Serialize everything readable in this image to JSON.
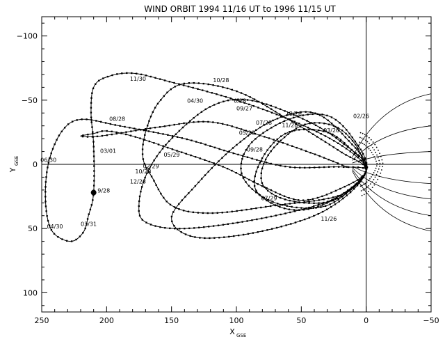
{
  "chart_data": {
    "type": "line",
    "title": "WIND ORBIT 1994 11/16 UT  to 1996 11/15 UT",
    "xlabel": "X",
    "xlabel_sub": "GSE",
    "ylabel": "Y",
    "ylabel_sub": "GSE",
    "xlim": [
      250,
      -50
    ],
    "ylim": [
      -115,
      115
    ],
    "x_ticks": [
      250,
      200,
      150,
      100,
      50,
      0,
      -50
    ],
    "y_ticks": [
      -100,
      -50,
      0,
      50,
      100
    ],
    "tick_labels_x": [
      "250",
      "200",
      "150",
      "100",
      "50",
      "0",
      "−50"
    ],
    "tick_labels_y": [
      "−100",
      "−50",
      "0",
      "50",
      "100"
    ],
    "grid": false,
    "zero_lines": true,
    "orbit": [
      [
        15,
        2
      ],
      [
        40,
        -8
      ],
      [
        80,
        -22
      ],
      [
        120,
        -33
      ],
      [
        160,
        -29
      ],
      [
        205,
        -22
      ],
      [
        220,
        -22
      ],
      [
        210,
        -24
      ],
      [
        200,
        -26
      ],
      [
        180,
        -22
      ],
      [
        150,
        -12
      ],
      [
        110,
        2
      ],
      [
        80,
        17
      ],
      [
        50,
        28
      ],
      [
        20,
        19
      ],
      [
        0,
        5
      ],
      [
        15,
        -12
      ],
      [
        50,
        -31
      ],
      [
        100,
        -50
      ],
      [
        150,
        -64
      ],
      [
        180,
        -71
      ],
      [
        200,
        -68
      ],
      [
        210,
        -60
      ],
      [
        212,
        -40
      ],
      [
        210,
        -15
      ],
      [
        210,
        22
      ],
      [
        214,
        40
      ],
      [
        218,
        53
      ],
      [
        228,
        60
      ],
      [
        242,
        52
      ],
      [
        247,
        30
      ],
      [
        245,
        0
      ],
      [
        235,
        -25
      ],
      [
        220,
        -35
      ],
      [
        190,
        -30
      ],
      [
        140,
        -20
      ],
      [
        100,
        -8
      ],
      [
        60,
        2
      ],
      [
        20,
        2
      ],
      [
        0,
        5
      ],
      [
        20,
        24
      ],
      [
        70,
        32
      ],
      [
        120,
        38
      ],
      [
        150,
        32
      ],
      [
        165,
        10
      ],
      [
        172,
        -5
      ],
      [
        170,
        -25
      ],
      [
        160,
        -48
      ],
      [
        140,
        -63
      ],
      [
        100,
        -57
      ],
      [
        60,
        -35
      ],
      [
        20,
        -10
      ],
      [
        0,
        5
      ],
      [
        25,
        27
      ],
      [
        80,
        42
      ],
      [
        140,
        50
      ],
      [
        170,
        45
      ],
      [
        175,
        30
      ],
      [
        168,
        5
      ],
      [
        150,
        -20
      ],
      [
        120,
        -45
      ],
      [
        90,
        -50
      ],
      [
        50,
        -36
      ],
      [
        20,
        -18
      ],
      [
        0,
        5
      ],
      [
        30,
        35
      ],
      [
        80,
        52
      ],
      [
        130,
        57
      ],
      [
        150,
        42
      ],
      [
        130,
        15
      ],
      [
        100,
        -15
      ],
      [
        70,
        -35
      ],
      [
        40,
        -40
      ],
      [
        15,
        -20
      ],
      [
        0,
        5
      ],
      [
        30,
        30
      ],
      [
        60,
        35
      ],
      [
        85,
        20
      ],
      [
        80,
        -5
      ],
      [
        60,
        -25
      ],
      [
        30,
        -25
      ],
      [
        10,
        -10
      ],
      [
        0,
        5
      ],
      [
        30,
        32
      ],
      [
        70,
        30
      ],
      [
        95,
        10
      ],
      [
        90,
        -15
      ],
      [
        60,
        -35
      ],
      [
        30,
        -38
      ],
      [
        10,
        -20
      ],
      [
        0,
        5
      ],
      [
        25,
        28
      ],
      [
        60,
        28
      ],
      [
        80,
        15
      ],
      [
        75,
        -8
      ],
      [
        50,
        -30
      ],
      [
        25,
        -30
      ],
      [
        8,
        -15
      ],
      [
        0,
        5
      ]
    ],
    "date_labels": [
      {
        "text": "11/30",
        "x": 182,
        "y": -65
      },
      {
        "text": "10/28",
        "x": 118,
        "y": -64
      },
      {
        "text": "04/30",
        "x": 138,
        "y": -48
      },
      {
        "text": "0/28",
        "x": 102,
        "y": -48
      },
      {
        "text": "09/27",
        "x": 100,
        "y": -42
      },
      {
        "text": "08/28",
        "x": 198,
        "y": -34
      },
      {
        "text": "12/26",
        "x": 62,
        "y": -38
      },
      {
        "text": "02/26",
        "x": 10,
        "y": -36
      },
      {
        "text": "07/28",
        "x": 85,
        "y": -31
      },
      {
        "text": "11/28",
        "x": 65,
        "y": -29
      },
      {
        "text": "05/29",
        "x": 98,
        "y": -23
      },
      {
        "text": "03/26",
        "x": 33,
        "y": -25
      },
      {
        "text": "03/01",
        "x": 205,
        "y": -9
      },
      {
        "text": "05/29",
        "x": 156,
        "y": -6
      },
      {
        "text": "09/28",
        "x": 92,
        "y": -10
      },
      {
        "text": "06/30",
        "x": 251,
        "y": -2
      },
      {
        "text": "02/29",
        "x": 172,
        "y": 3
      },
      {
        "text": "10/28",
        "x": 178,
        "y": 7
      },
      {
        "text": "12/28",
        "x": 182,
        "y": 15
      },
      {
        "text": "9/28",
        "x": 207,
        "y": 22
      },
      {
        "text": "07/29",
        "x": 81,
        "y": 28
      },
      {
        "text": "04/30",
        "x": 246,
        "y": 50
      },
      {
        "text": "03/31",
        "x": 220,
        "y": 48
      },
      {
        "text": "11/26",
        "x": 35,
        "y": 44
      }
    ],
    "bow_shock": {
      "x_nose": 15,
      "y_half_width": 25
    },
    "field_lines": [
      {
        "x0": 0,
        "y0": 0,
        "x1": -50,
        "y1": -55
      },
      {
        "x0": 0,
        "y0": 0,
        "x1": -50,
        "y1": -30
      },
      {
        "x0": 0,
        "y0": 0,
        "x1": -50,
        "y1": -10
      },
      {
        "x0": 0,
        "y0": 0,
        "x1": -50,
        "y1": 15
      },
      {
        "x0": 0,
        "y0": 0,
        "x1": -50,
        "y1": 27
      },
      {
        "x0": 0,
        "y0": 0,
        "x1": -50,
        "y1": 40
      },
      {
        "x0": 0,
        "y0": 0,
        "x1": -50,
        "y1": 52
      }
    ]
  }
}
